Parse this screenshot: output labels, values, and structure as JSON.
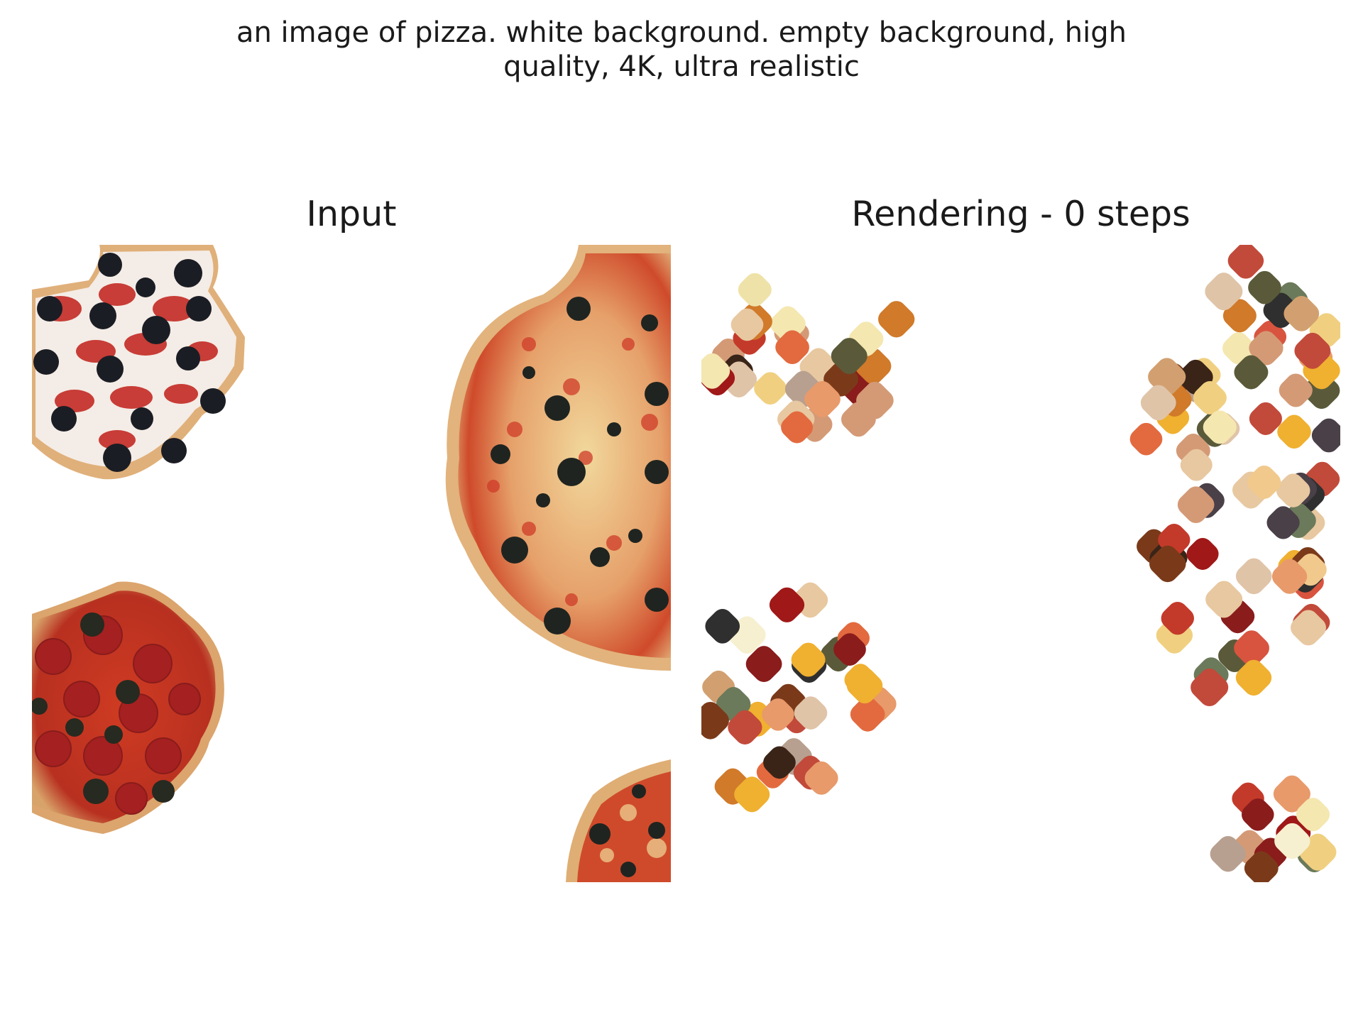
{
  "figure": {
    "title_lines": [
      "an image of pizza. white background. empty background, high",
      "quality, 4K, ultra realistic"
    ]
  },
  "panels": [
    {
      "title": "Input",
      "content": "pizza-photo-fragments"
    },
    {
      "title": "Rendering - 0 steps",
      "content": "splat-blobs"
    }
  ],
  "colors": {
    "background": "#ffffff",
    "text": "#1a1a1a",
    "crust": "#e1b27a",
    "sauce": "#c8311e",
    "cheese": "#f3e6b8",
    "olive": "#1f2420",
    "pepperoni": "#b52a22"
  }
}
